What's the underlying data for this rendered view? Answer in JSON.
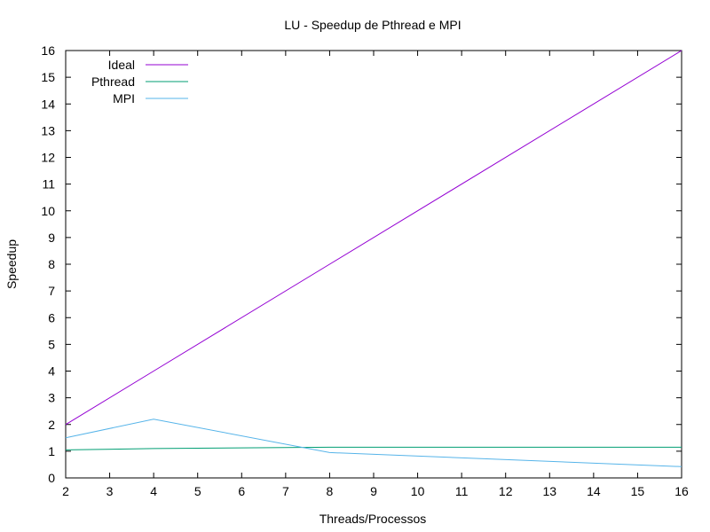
{
  "chart_data": {
    "type": "line",
    "title": "LU - Speedup de Pthread e MPI",
    "xlabel": "Threads/Processos",
    "ylabel": "Speedup",
    "xlim": [
      2,
      16
    ],
    "ylim": [
      0,
      16
    ],
    "xticks": [
      2,
      3,
      4,
      5,
      6,
      7,
      8,
      9,
      10,
      11,
      12,
      13,
      14,
      15,
      16
    ],
    "yticks": [
      0,
      1,
      2,
      3,
      4,
      5,
      6,
      7,
      8,
      9,
      10,
      11,
      12,
      13,
      14,
      15,
      16
    ],
    "grid": false,
    "legend_position": "top-left",
    "series": [
      {
        "name": "Ideal",
        "color": "#9400d3",
        "x": [
          2,
          4,
          8,
          16
        ],
        "y": [
          2,
          4,
          8,
          16
        ]
      },
      {
        "name": "Pthread",
        "color": "#009e73",
        "x": [
          2,
          4,
          8,
          16
        ],
        "y": [
          1.05,
          1.1,
          1.15,
          1.15
        ]
      },
      {
        "name": "MPI",
        "color": "#56b4e9",
        "x": [
          2,
          4,
          8,
          16
        ],
        "y": [
          1.5,
          2.2,
          0.95,
          0.42
        ]
      }
    ]
  }
}
